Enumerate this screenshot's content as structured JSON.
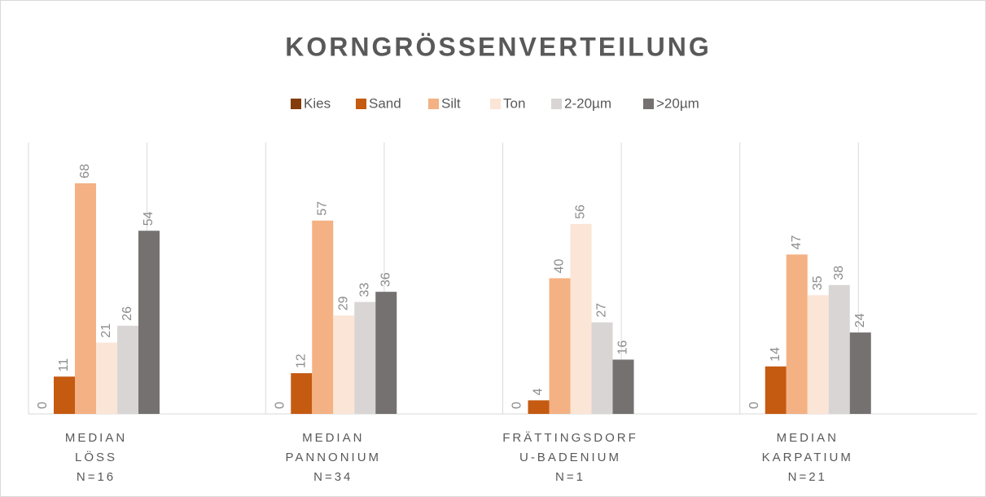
{
  "chart_data": {
    "type": "bar",
    "title": "KORNGRÖSSENVERTEILUNG",
    "categories": [
      [
        "MEDIAN",
        "LÖSS",
        "N=16"
      ],
      [
        "MEDIAN",
        "PANNONIUM",
        "N=34"
      ],
      [
        "FRÄTTINGSDORF",
        "U-BADENIUM",
        "N=1"
      ],
      [
        "MEDIAN",
        "KARPATIUM",
        "N=21"
      ]
    ],
    "series": [
      {
        "name": "Kies",
        "color": "#843c0c",
        "values": [
          0,
          0,
          0,
          0
        ]
      },
      {
        "name": "Sand",
        "color": "#c55a11",
        "values": [
          11,
          12,
          4,
          14
        ]
      },
      {
        "name": "Silt",
        "color": "#f4b183",
        "values": [
          68,
          57,
          40,
          47
        ]
      },
      {
        "name": "Ton",
        "color": "#fbe5d6",
        "values": [
          21,
          29,
          56,
          35
        ]
      },
      {
        "name": "2-20µm",
        "color": "#d9d5d5",
        "values": [
          26,
          33,
          27,
          38
        ]
      },
      {
        "name": ">20µm",
        "color": "#767171",
        "values": [
          54,
          36,
          16,
          24
        ]
      }
    ],
    "ylim": [
      0,
      80
    ],
    "legend": "top"
  }
}
